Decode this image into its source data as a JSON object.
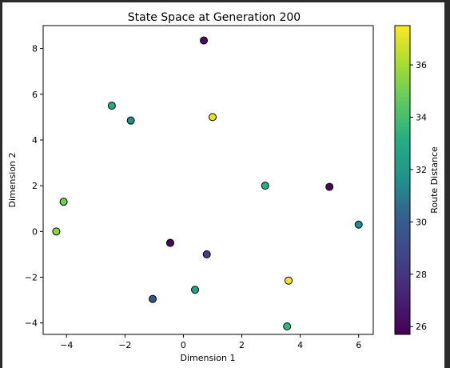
{
  "chart_data": {
    "type": "scatter",
    "title": "State Space at Generation 200",
    "xlabel": "Dimension 1",
    "ylabel": "Dimension 2",
    "xlim": [
      -4.8,
      6.5
    ],
    "ylim": [
      -4.5,
      9.0
    ],
    "xticks": [
      -4,
      -2,
      0,
      2,
      4,
      6
    ],
    "xtick_labels": [
      "−4",
      "−2",
      "0",
      "2",
      "4",
      "6"
    ],
    "yticks": [
      -4,
      -2,
      0,
      2,
      4,
      6,
      8
    ],
    "ytick_labels": [
      "−4",
      "−2",
      "0",
      "2",
      "4",
      "6",
      "8"
    ],
    "grid": false,
    "colormap": "viridis",
    "colorbar": {
      "label": "Route Distance",
      "range": [
        25.7,
        37.5
      ],
      "ticks": [
        26,
        28,
        30,
        32,
        34,
        36
      ],
      "tick_labels": [
        "26",
        "28",
        "30",
        "32",
        "34",
        "36"
      ]
    },
    "points": [
      {
        "x": 0.7,
        "y": 8.35,
        "value": 26.3
      },
      {
        "x": -2.45,
        "y": 5.5,
        "value": 33.0
      },
      {
        "x": -1.8,
        "y": 4.85,
        "value": 31.5
      },
      {
        "x": 1.0,
        "y": 5.0,
        "value": 37.0
      },
      {
        "x": 2.8,
        "y": 2.0,
        "value": 33.0
      },
      {
        "x": 5.0,
        "y": 1.95,
        "value": 26.0
      },
      {
        "x": -4.1,
        "y": 1.3,
        "value": 35.0
      },
      {
        "x": -4.35,
        "y": 0.0,
        "value": 35.5
      },
      {
        "x": 6.0,
        "y": 0.3,
        "value": 31.5
      },
      {
        "x": -0.45,
        "y": -0.5,
        "value": 27.0
      },
      {
        "x": -0.45,
        "y": -0.5,
        "value": 26.0
      },
      {
        "x": 0.8,
        "y": -1.0,
        "value": 28.5
      },
      {
        "x": 3.6,
        "y": -2.15,
        "value": 37.3
      },
      {
        "x": 0.4,
        "y": -2.55,
        "value": 32.5
      },
      {
        "x": -1.05,
        "y": -2.95,
        "value": 29.5
      },
      {
        "x": 3.55,
        "y": -4.15,
        "value": 33.5
      }
    ]
  }
}
